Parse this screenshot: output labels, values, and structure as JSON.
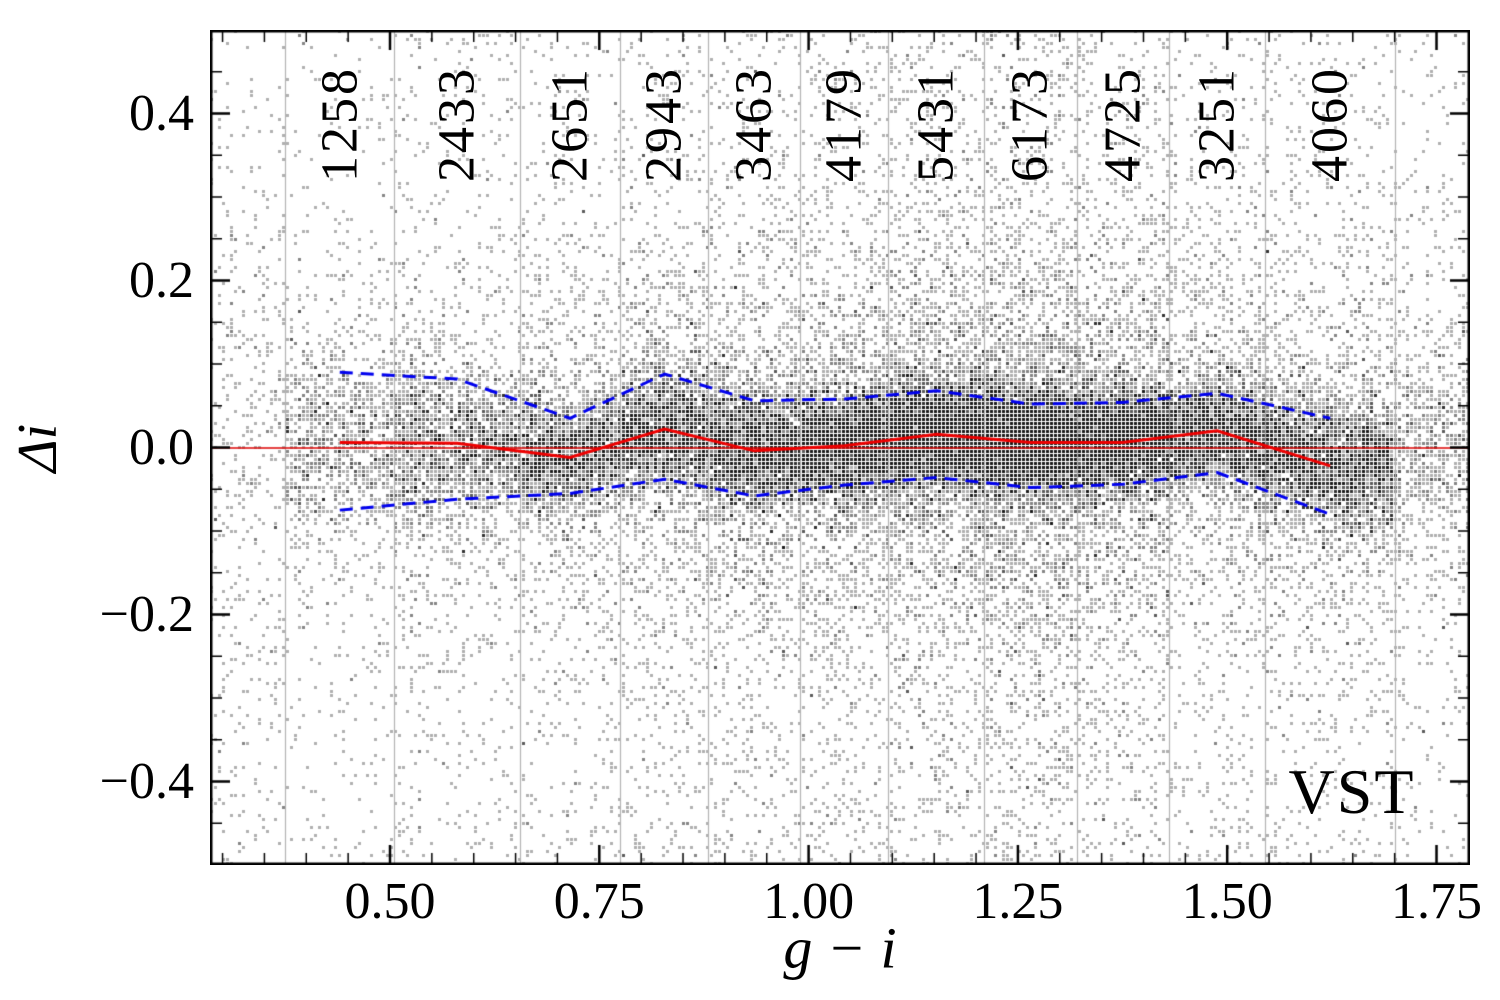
{
  "chart_data": {
    "type": "scatter",
    "title": "",
    "xlabel": "g − i",
    "ylabel": "Δi",
    "annotation": "VST",
    "xlim": [
      0.285,
      1.79
    ],
    "ylim": [
      -0.5,
      0.5
    ],
    "x_ticks": {
      "values": [
        0.5,
        0.75,
        1.0,
        1.25,
        1.5,
        1.75
      ],
      "labels": [
        "0.50",
        "0.75",
        "1.00",
        "1.25",
        "1.50",
        "1.75"
      ]
    },
    "y_ticks": {
      "values": [
        0.4,
        0.2,
        0.0,
        -0.2,
        -0.4
      ],
      "labels": [
        "0.4",
        "0.2",
        "0.0",
        "−0.2",
        "−0.4"
      ]
    },
    "grid": "vertical lines at bin edges",
    "legend": "none",
    "bin_edges": [
      0.375,
      0.505,
      0.655,
      0.775,
      0.88,
      0.99,
      1.095,
      1.21,
      1.32,
      1.43,
      1.545,
      1.7
    ],
    "bin_counts": [
      1258,
      2433,
      2651,
      2943,
      3463,
      4179,
      5431,
      6173,
      4725,
      3251,
      4060
    ],
    "bin_centers": [
      0.44,
      0.58,
      0.715,
      0.828,
      0.935,
      1.043,
      1.153,
      1.265,
      1.375,
      1.488,
      1.623
    ],
    "series": [
      {
        "name": "median",
        "type": "line",
        "color": "#ee0000",
        "style": "solid",
        "y": [
          0.006,
          0.005,
          -0.012,
          0.022,
          -0.004,
          0.002,
          0.016,
          0.006,
          0.006,
          0.02,
          -0.022
        ]
      },
      {
        "name": "upper-envelope",
        "type": "line",
        "color": "#0000ee",
        "style": "dashed",
        "y": [
          0.09,
          0.082,
          0.035,
          0.088,
          0.056,
          0.058,
          0.068,
          0.052,
          0.054,
          0.065,
          0.035
        ]
      },
      {
        "name": "lower-envelope",
        "type": "line",
        "color": "#0000ee",
        "style": "dashed",
        "y": [
          -0.075,
          -0.062,
          -0.055,
          -0.038,
          -0.058,
          -0.045,
          -0.036,
          -0.048,
          -0.044,
          -0.03,
          -0.08
        ]
      },
      {
        "name": "zero-line",
        "type": "hline",
        "color": "#dd0000",
        "y": 0.0
      }
    ],
    "scatter": {
      "marker": "pixel",
      "color": "grayscale-density",
      "total_points": 40567
    }
  }
}
